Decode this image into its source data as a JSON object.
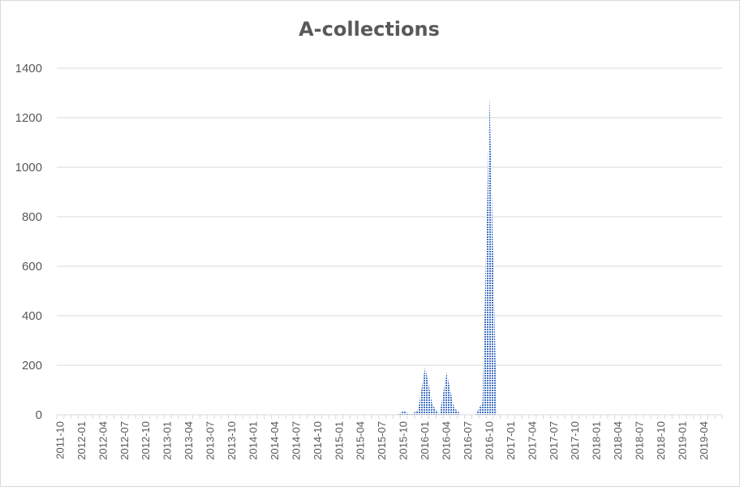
{
  "chart_data": {
    "type": "area",
    "title": "A-collections",
    "xlabel": "",
    "ylabel": "",
    "ylim": [
      0,
      1400
    ],
    "yticks": [
      0,
      200,
      400,
      600,
      800,
      1000,
      1200,
      1400
    ],
    "grid": true,
    "legend": "none",
    "colors": {
      "fill": "#4472c4",
      "grid": "#d9d9d9",
      "text": "#595959"
    },
    "x": [
      "2011-10",
      "2011-11",
      "2011-12",
      "2012-01",
      "2012-02",
      "2012-03",
      "2012-04",
      "2012-05",
      "2012-06",
      "2012-07",
      "2012-08",
      "2012-09",
      "2012-10",
      "2012-11",
      "2012-12",
      "2013-01",
      "2013-02",
      "2013-03",
      "2013-04",
      "2013-05",
      "2013-06",
      "2013-07",
      "2013-08",
      "2013-09",
      "2013-10",
      "2013-11",
      "2013-12",
      "2014-01",
      "2014-02",
      "2014-03",
      "2014-04",
      "2014-05",
      "2014-06",
      "2014-07",
      "2014-08",
      "2014-09",
      "2014-10",
      "2014-11",
      "2014-12",
      "2015-01",
      "2015-02",
      "2015-03",
      "2015-04",
      "2015-05",
      "2015-06",
      "2015-07",
      "2015-08",
      "2015-09",
      "2015-10",
      "2015-11",
      "2015-12",
      "2016-01",
      "2016-02",
      "2016-03",
      "2016-04",
      "2016-05",
      "2016-06",
      "2016-07",
      "2016-08",
      "2016-09",
      "2016-10",
      "2016-11",
      "2016-12",
      "2017-01",
      "2017-02",
      "2017-03",
      "2017-04",
      "2017-05",
      "2017-06",
      "2017-07",
      "2017-08",
      "2017-09",
      "2017-10",
      "2017-11",
      "2017-12",
      "2018-01",
      "2018-02",
      "2018-03",
      "2018-04",
      "2018-05",
      "2018-06",
      "2018-07",
      "2018-08",
      "2018-09",
      "2018-10",
      "2018-11",
      "2018-12",
      "2019-01",
      "2019-02",
      "2019-03",
      "2019-04",
      "2019-05",
      "2019-06"
    ],
    "tick_labels": [
      "2011-10",
      "2012-01",
      "2012-04",
      "2012-07",
      "2012-10",
      "2013-01",
      "2013-04",
      "2013-07",
      "2013-10",
      "2014-01",
      "2014-04",
      "2014-07",
      "2014-10",
      "2015-01",
      "2015-04",
      "2015-07",
      "2015-10",
      "2016-01",
      "2016-04",
      "2016-07",
      "2016-10",
      "2017-01",
      "2017-04",
      "2017-07",
      "2017-10",
      "2018-01",
      "2018-04",
      "2018-07",
      "2018-10",
      "2019-01",
      "2019-04"
    ],
    "series": [
      {
        "values": [
          0,
          0,
          0,
          0,
          0,
          0,
          0,
          0,
          0,
          0,
          0,
          0,
          0,
          0,
          0,
          0,
          0,
          0,
          0,
          0,
          0,
          0,
          0,
          0,
          0,
          0,
          0,
          0,
          0,
          0,
          0,
          0,
          0,
          0,
          0,
          0,
          0,
          0,
          0,
          0,
          0,
          0,
          0,
          0,
          0,
          0,
          0,
          0,
          15,
          0,
          20,
          195,
          40,
          0,
          170,
          30,
          0,
          0,
          0,
          50,
          1280,
          0,
          0,
          0,
          0,
          0,
          0,
          0,
          0,
          0,
          0,
          0,
          0,
          0,
          0,
          0,
          0,
          0,
          0,
          0,
          0,
          0,
          0,
          0,
          0,
          0,
          0,
          0,
          0,
          0,
          0,
          0,
          0
        ]
      }
    ]
  }
}
